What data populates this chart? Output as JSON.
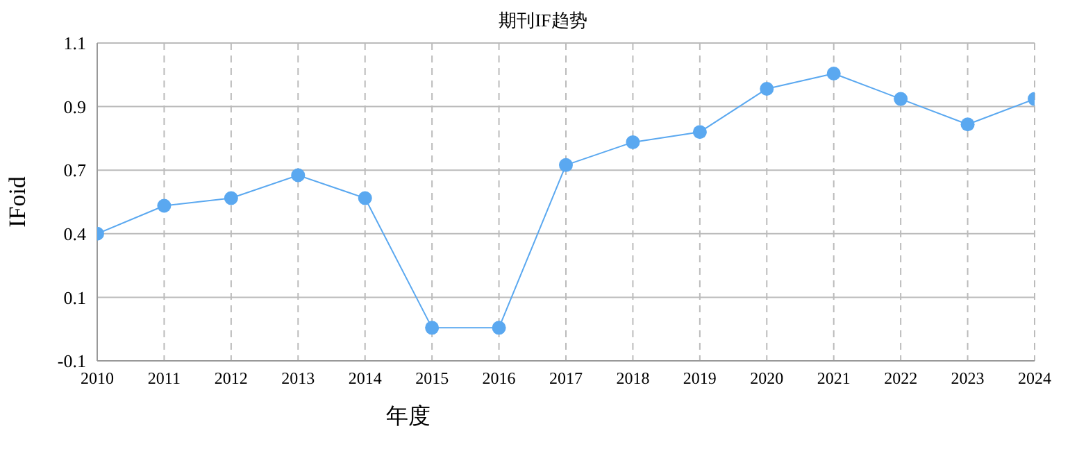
{
  "chart_data": {
    "type": "line",
    "title": "期刊IF趋势",
    "xlabel": "年度",
    "ylabel": "IFoid",
    "categories": [
      "2010",
      "2011",
      "2012",
      "2013",
      "2014",
      "2015",
      "2016",
      "2017",
      "2018",
      "2019",
      "2020",
      "2021",
      "2022",
      "2023",
      "2024"
    ],
    "series": [
      {
        "color": "#5aa8f0",
        "values": [
          0.4,
          0.51,
          0.54,
          0.63,
          0.54,
          0.03,
          0.03,
          0.67,
          0.76,
          0.8,
          0.97,
          1.03,
          0.93,
          0.83,
          0.93
        ]
      }
    ],
    "ylim": [
      -0.1,
      1.15
    ],
    "yticks": [
      -0.1,
      {
        "value": 0.15,
        "label": "0.1"
      },
      0.4,
      {
        "value": 0.65,
        "label": "0.7"
      },
      0.9,
      {
        "value": 1.15,
        "label": "1.1"
      }
    ],
    "grid": true,
    "marker": "circle",
    "line_style": "solid"
  }
}
